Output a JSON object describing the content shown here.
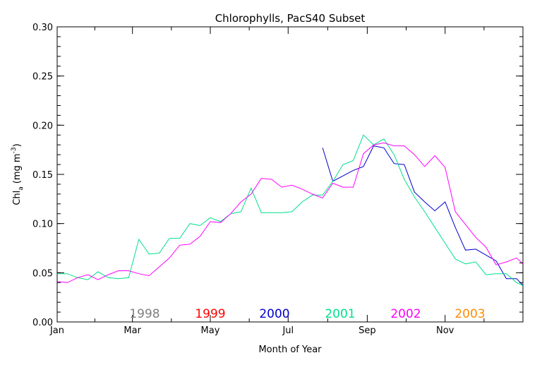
{
  "chart_data": {
    "type": "line",
    "title": "Chlorophylls, PacS40 Subset",
    "xlabel": "Month of Year",
    "ylabel_main": "Chl",
    "ylabel_sub": "a",
    "ylabel_units": "(mg m",
    "ylabel_sup": "-3",
    "ylabel_close": ")",
    "xlim": [
      0,
      365
    ],
    "ylim": [
      0,
      0.3
    ],
    "yticks": [
      {
        "value": 0.0,
        "label": "0.00"
      },
      {
        "value": 0.05,
        "label": "0.05"
      },
      {
        "value": 0.1,
        "label": "0.10"
      },
      {
        "value": 0.15,
        "label": "0.15"
      },
      {
        "value": 0.2,
        "label": "0.20"
      },
      {
        "value": 0.25,
        "label": "0.25"
      },
      {
        "value": 0.3,
        "label": "0.30"
      }
    ],
    "xticks": [
      {
        "value": 0,
        "label": "Jan"
      },
      {
        "value": 59,
        "label": "Mar"
      },
      {
        "value": 120,
        "label": "May"
      },
      {
        "value": 181,
        "label": "Jul"
      },
      {
        "value": 243,
        "label": "Sep"
      },
      {
        "value": 304,
        "label": "Nov"
      }
    ],
    "grid": false,
    "legend": [
      {
        "label": "1998",
        "color": "#808080"
      },
      {
        "label": "1999",
        "color": "#ff0000"
      },
      {
        "label": "2000",
        "color": "#0000cc"
      },
      {
        "label": "2001",
        "color": "#00e08c"
      },
      {
        "label": "2002",
        "color": "#ff00ff"
      },
      {
        "label": "2003",
        "color": "#ff8c00"
      }
    ],
    "series": [
      {
        "name": "2000",
        "color": "#0000cc",
        "x": [
          208,
          216,
          232,
          240,
          248,
          256,
          264,
          272,
          280,
          288,
          296,
          304,
          312,
          320,
          328,
          336,
          344,
          352,
          360,
          365
        ],
        "y": [
          0.177,
          0.143,
          0.154,
          0.158,
          0.179,
          0.177,
          0.161,
          0.16,
          0.132,
          0.122,
          0.113,
          0.122,
          0.096,
          0.073,
          0.074,
          0.068,
          0.062,
          0.044,
          0.044,
          0.037
        ]
      },
      {
        "name": "2001",
        "color": "#00e08c",
        "x": [
          0,
          8,
          16,
          24,
          32,
          40,
          48,
          56,
          64,
          72,
          80,
          88,
          96,
          104,
          112,
          120,
          128,
          136,
          144,
          152,
          160,
          168,
          176,
          184,
          192,
          200,
          208,
          216,
          224,
          232,
          240,
          248,
          256,
          264,
          272,
          280,
          288,
          296,
          304,
          312,
          320,
          328,
          336,
          344,
          352,
          360,
          365
        ],
        "y": [
          0.049,
          0.049,
          0.045,
          0.043,
          0.051,
          0.045,
          0.044,
          0.045,
          0.084,
          0.069,
          0.07,
          0.085,
          0.085,
          0.1,
          0.098,
          0.106,
          0.102,
          0.11,
          0.112,
          0.136,
          0.111,
          0.111,
          0.111,
          0.112,
          0.122,
          0.129,
          0.129,
          0.143,
          0.16,
          0.164,
          0.19,
          0.18,
          0.186,
          0.17,
          0.145,
          0.127,
          0.112,
          0.096,
          0.08,
          0.064,
          0.059,
          0.061,
          0.048,
          0.049,
          0.049,
          0.04,
          0.037
        ]
      },
      {
        "name": "2002",
        "color": "#ff00ff",
        "x": [
          0,
          8,
          16,
          24,
          32,
          40,
          48,
          56,
          64,
          72,
          80,
          88,
          96,
          104,
          112,
          120,
          128,
          136,
          144,
          152,
          160,
          168,
          176,
          184,
          192,
          200,
          208,
          216,
          224,
          232,
          240,
          248,
          256,
          264,
          272,
          280,
          288,
          296,
          304,
          312,
          320,
          328,
          336,
          344,
          352,
          360,
          365
        ],
        "y": [
          0.041,
          0.04,
          0.045,
          0.048,
          0.043,
          0.048,
          0.052,
          0.052,
          0.049,
          0.047,
          0.056,
          0.065,
          0.078,
          0.079,
          0.087,
          0.102,
          0.101,
          0.11,
          0.122,
          0.13,
          0.146,
          0.145,
          0.137,
          0.139,
          0.135,
          0.13,
          0.126,
          0.141,
          0.137,
          0.137,
          0.171,
          0.18,
          0.182,
          0.179,
          0.179,
          0.17,
          0.158,
          0.169,
          0.157,
          0.112,
          0.099,
          0.086,
          0.076,
          0.058,
          0.061,
          0.065,
          0.059
        ]
      }
    ]
  }
}
